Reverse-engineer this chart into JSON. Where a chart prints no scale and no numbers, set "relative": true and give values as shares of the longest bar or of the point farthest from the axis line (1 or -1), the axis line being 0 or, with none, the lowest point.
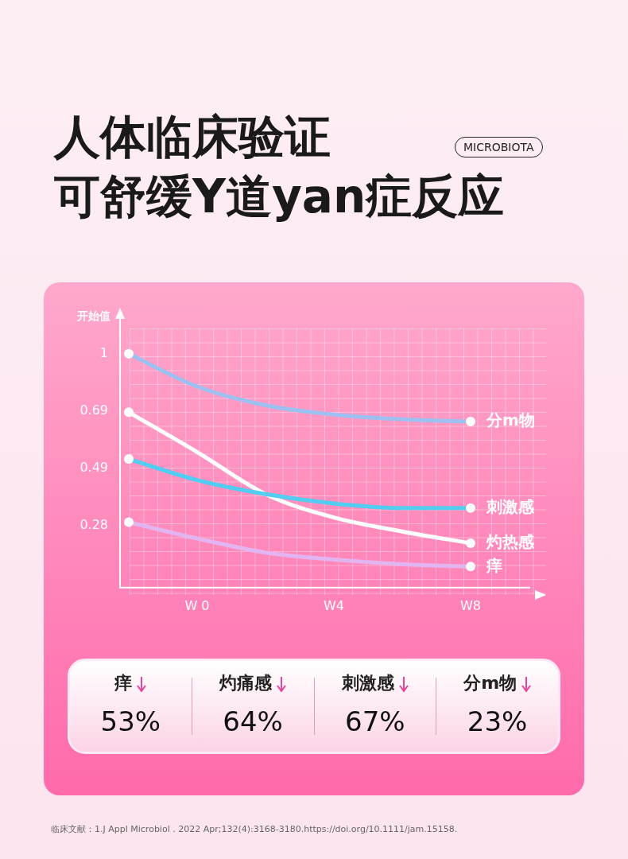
{
  "chart_data": [
    {
      "type": "line",
      "title": "人体临床验证",
      "subtitle": "可舒缓Y道yan症反应",
      "ylabel": "开始值",
      "relative": true,
      "categories": [
        null,
        "W 0",
        null,
        "W4",
        null,
        "W8"
      ],
      "legend": false,
      "grid": false,
      "series": [
        {
          "name": "分m物",
          "color": "#9ec0f0",
          "values": [
            1,
            0.86,
            0.78,
            0.74,
            0.72,
            0.71
          ]
        },
        {
          "name": "刺激感",
          "color": "#50cdf0",
          "values": [
            0.55,
            0.46,
            0.4,
            0.36,
            0.34,
            0.34
          ]
        },
        {
          "name": "灼热感",
          "color": "#ffffff",
          "values": [
            0.75,
            0.58,
            0.4,
            0.3,
            0.24,
            0.19
          ]
        },
        {
          "name": "痒",
          "color": "#e2b4f0",
          "values": [
            0.28,
            0.21,
            0.15,
            0.12,
            0.1,
            0.09
          ]
        }
      ],
      "annotations": [
        "1",
        "0.69",
        "0.49",
        "0.28",
        "MICROBIOTA",
        "临床文献：1.J Appl Microbiol . 2022 Apr;132(4):3168-3180.https://doi.org/10.1111/jam.15158."
      ]
    },
    {
      "type": "other",
      "categories": [
        "痒",
        "灼痛感",
        "刺激感",
        "分m物"
      ],
      "value_labels": [
        "53%",
        "64%",
        "67%",
        "23%"
      ]
    }
  ]
}
